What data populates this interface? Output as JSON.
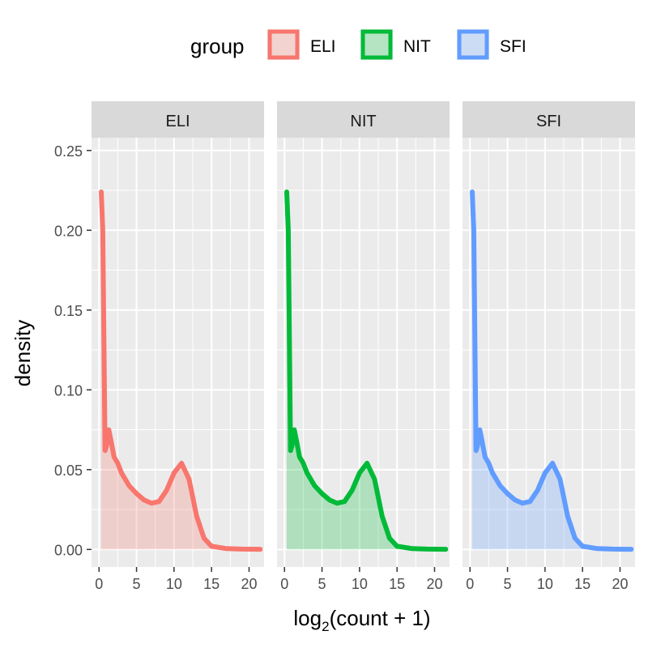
{
  "chart_data": {
    "type": "area",
    "xlabel_base": "log",
    "xlabel_sub": "2",
    "xlabel_rest": "(count + 1)",
    "ylabel": "density",
    "xlim": [
      -1,
      22
    ],
    "ylim": [
      -0.011,
      0.258
    ],
    "x_ticks": [
      0,
      5,
      10,
      15,
      20
    ],
    "y_ticks": [
      0.0,
      0.05,
      0.1,
      0.15,
      0.2,
      0.25
    ],
    "y_tick_labels": [
      "0.00",
      "0.05",
      "0.10",
      "0.15",
      "0.20",
      "0.25"
    ],
    "grid": true,
    "legend": {
      "title": "group",
      "position": "top",
      "entries": [
        "ELI",
        "NIT",
        "SFI"
      ]
    },
    "facets": [
      "ELI",
      "NIT",
      "SFI"
    ],
    "colors": {
      "ELI": "#F8766D",
      "NIT": "#00BA38",
      "SFI": "#619CFF"
    },
    "series": [
      {
        "name": "ELI",
        "x": [
          0.3,
          0.5,
          0.8,
          1.0,
          1.3,
          1.6,
          2.0,
          2.5,
          3,
          4,
          5,
          6,
          7,
          8,
          9,
          10,
          11,
          12,
          13,
          14,
          15,
          17,
          19,
          21.5
        ],
        "y": [
          0.224,
          0.2,
          0.062,
          0.065,
          0.075,
          0.068,
          0.058,
          0.054,
          0.048,
          0.04,
          0.035,
          0.031,
          0.029,
          0.03,
          0.037,
          0.048,
          0.054,
          0.044,
          0.021,
          0.007,
          0.002,
          0.0005,
          0.0002,
          0.0001
        ]
      },
      {
        "name": "NIT",
        "x": [
          0.3,
          0.5,
          0.8,
          1.0,
          1.3,
          1.6,
          2.0,
          2.5,
          3,
          4,
          5,
          6,
          7,
          8,
          9,
          10,
          11,
          12,
          13,
          14,
          15,
          17,
          19,
          21.5
        ],
        "y": [
          0.224,
          0.2,
          0.062,
          0.065,
          0.075,
          0.068,
          0.058,
          0.054,
          0.048,
          0.04,
          0.035,
          0.031,
          0.029,
          0.03,
          0.037,
          0.048,
          0.054,
          0.044,
          0.021,
          0.007,
          0.002,
          0.0005,
          0.0002,
          0.0001
        ]
      },
      {
        "name": "SFI",
        "x": [
          0.3,
          0.5,
          0.8,
          1.0,
          1.3,
          1.6,
          2.0,
          2.5,
          3,
          4,
          5,
          6,
          7,
          8,
          9,
          10,
          11,
          12,
          13,
          14,
          15,
          17,
          19,
          21.5
        ],
        "y": [
          0.224,
          0.2,
          0.062,
          0.065,
          0.075,
          0.068,
          0.058,
          0.054,
          0.048,
          0.04,
          0.035,
          0.031,
          0.029,
          0.03,
          0.037,
          0.048,
          0.054,
          0.044,
          0.021,
          0.007,
          0.002,
          0.0005,
          0.0002,
          0.0001
        ]
      }
    ]
  }
}
